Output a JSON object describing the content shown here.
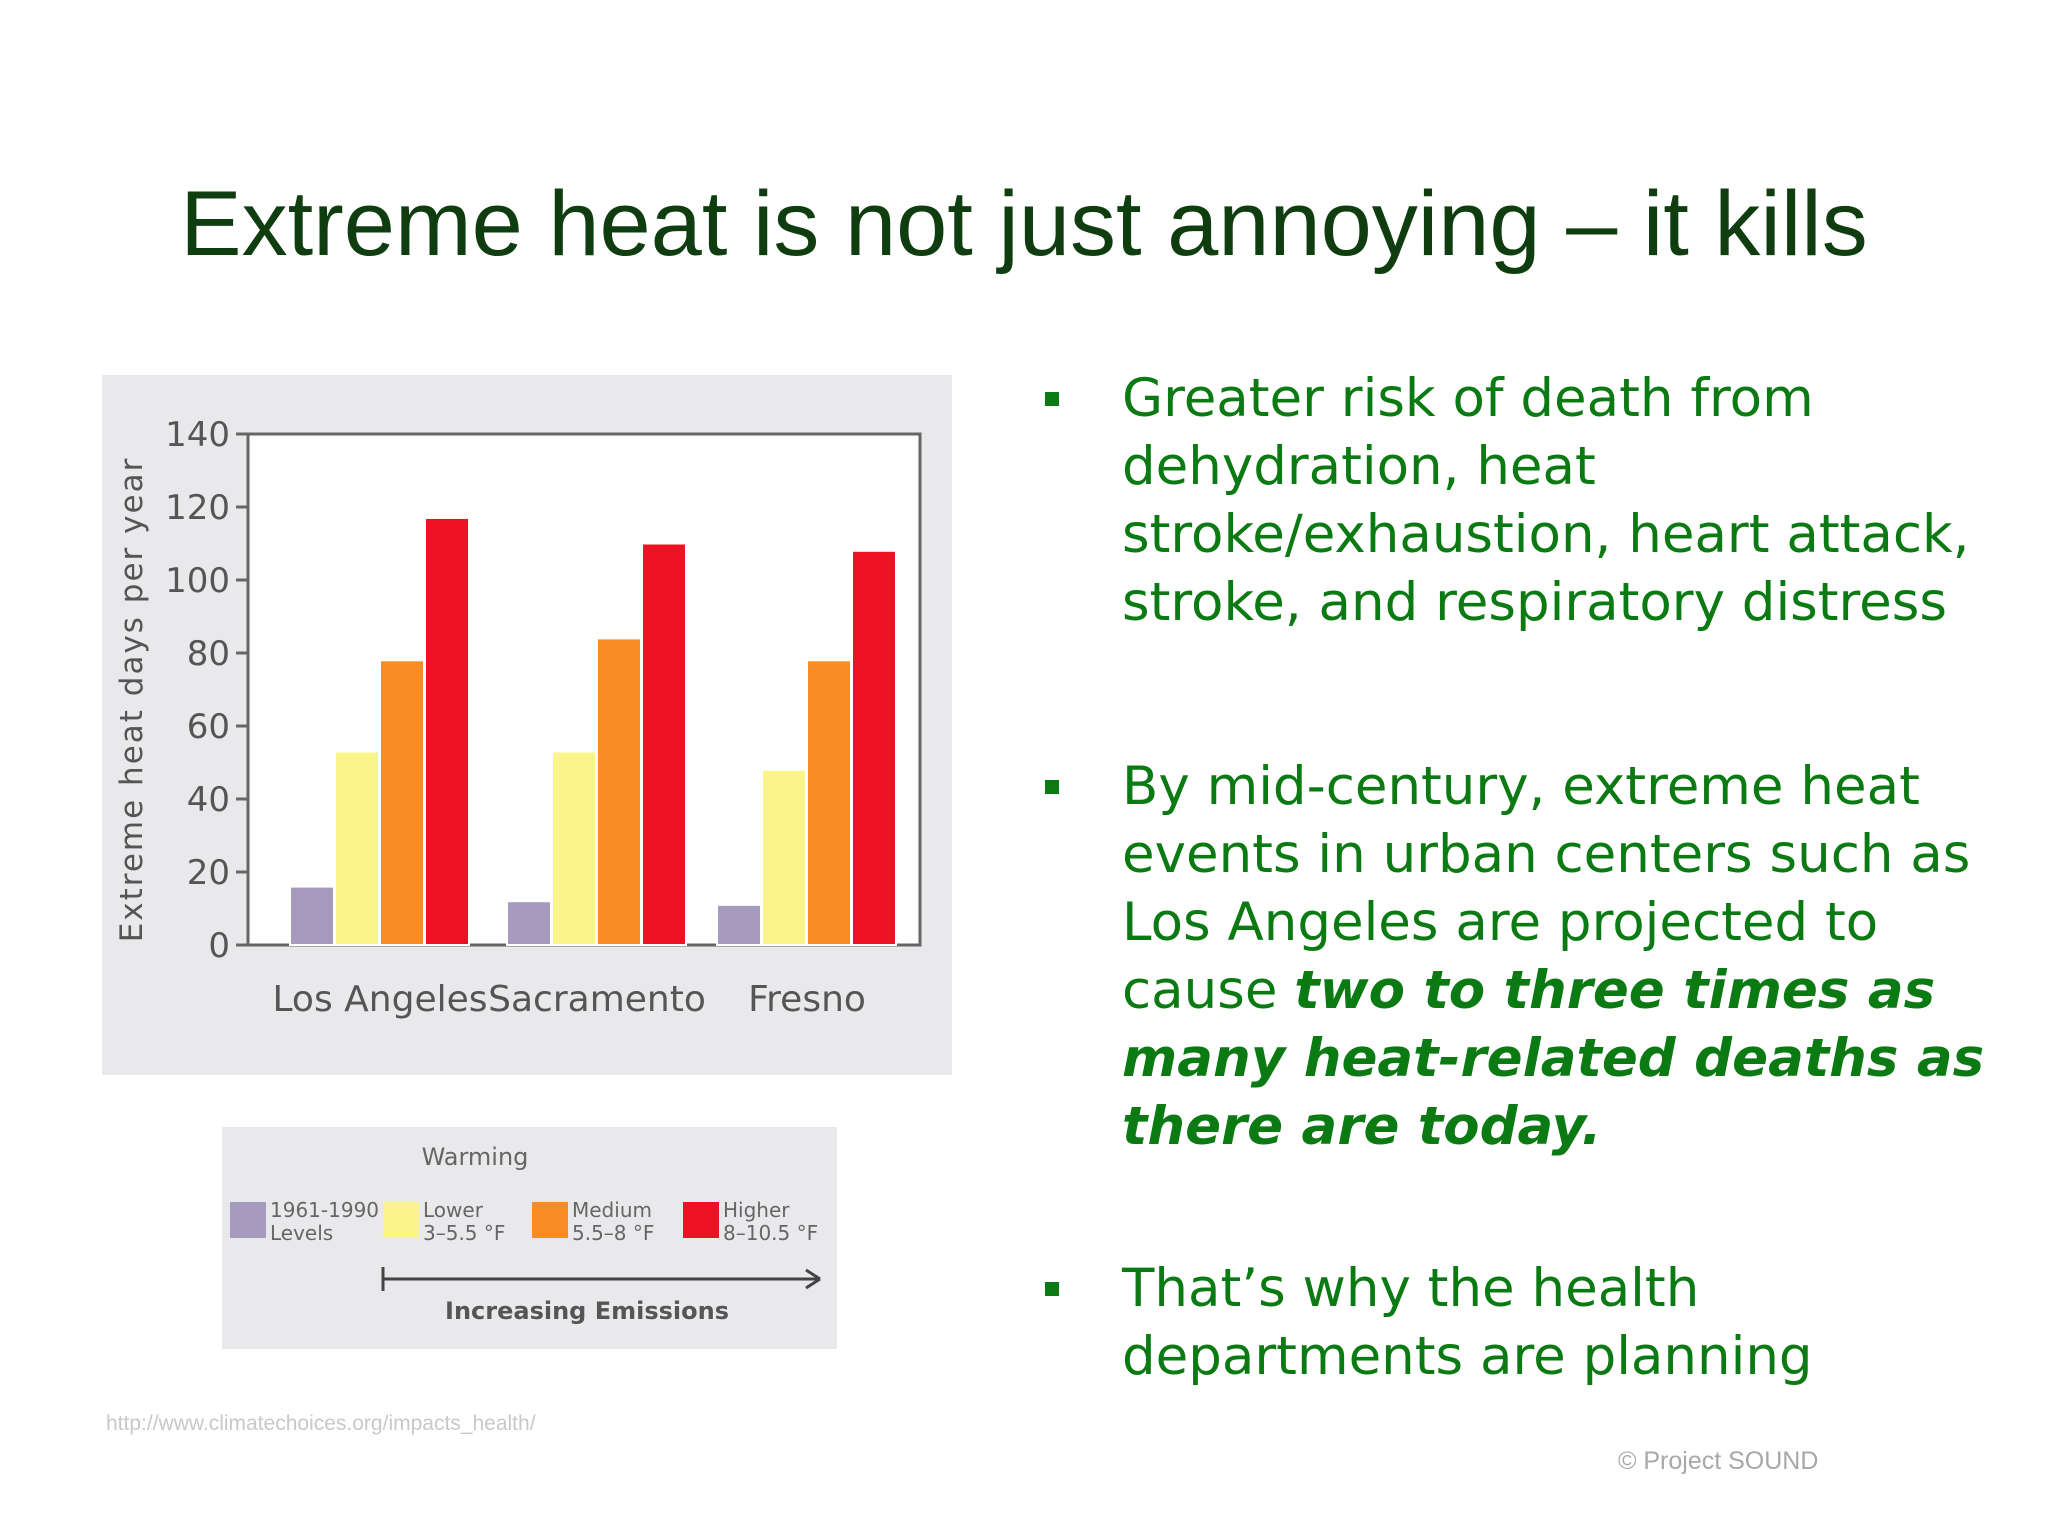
{
  "slide": {
    "title": "Extreme heat is not just annoying – it kills",
    "source_url": "http://www.climatechoices.org/impacts_health/",
    "copyright": "© Project  SOUND"
  },
  "bullets": [
    {
      "text": "Greater risk of death from dehydration, heat stroke/exhaustion, heart attack, stroke, and respiratory distress"
    },
    {
      "text": "By mid-century, extreme heat events in urban centers such as Los Angeles are projected to cause ",
      "emphasis": "two to three times as many heat-related deaths as there are today."
    },
    {
      "text": "That’s why the health departments are planning"
    }
  ],
  "chart_data": {
    "type": "bar",
    "title": "",
    "xlabel": "",
    "ylabel": "Extreme heat days per year",
    "ylim": [
      0,
      140
    ],
    "yticks": [
      0,
      20,
      40,
      60,
      80,
      100,
      120,
      140
    ],
    "grid": false,
    "categories": [
      "Los Angeles",
      "Sacramento",
      "Fresno"
    ],
    "series": [
      {
        "name": "1961-1990 Levels",
        "color": "#a79bbd",
        "values": [
          16,
          12,
          11
        ]
      },
      {
        "name": "Lower 3–5.5 °F",
        "color": "#fbf48a",
        "values": [
          53,
          53,
          48
        ]
      },
      {
        "name": "Medium 5.5–8 °F",
        "color": "#f98c24",
        "values": [
          78,
          84,
          78
        ]
      },
      {
        "name": "Higher 8–10.5 °F",
        "color": "#ec1123",
        "values": [
          117,
          110,
          108
        ]
      }
    ],
    "legend": {
      "title": "Warming",
      "placement": "below",
      "entries": [
        {
          "line1": "1961-1990",
          "line2": "Levels"
        },
        {
          "line1": "Lower",
          "line2": "3–5.5 °F"
        },
        {
          "line1": "Medium",
          "line2": "5.5–8 °F"
        },
        {
          "line1": "Higher",
          "line2": "8–10.5 °F"
        }
      ],
      "arrow_label": "Increasing Emissions"
    }
  }
}
